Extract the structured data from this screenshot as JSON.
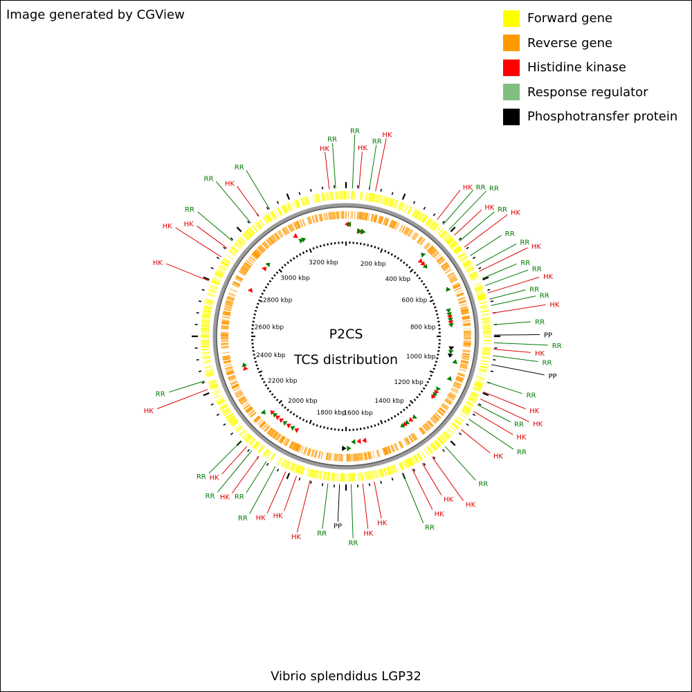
{
  "credit": "Image generated by CGView",
  "legend": [
    {
      "label": "Forward gene",
      "color": "#ffff00"
    },
    {
      "label": "Reverse gene",
      "color": "#ff9900"
    },
    {
      "label": "Histidine kinase",
      "color": "#ff0000"
    },
    {
      "label": "Response regulator",
      "color": "#7fbf7f"
    },
    {
      "label": "Phosphotransfer protein",
      "color": "#000000"
    }
  ],
  "center": {
    "line1": "P2CS",
    "line2": "TCS distribution"
  },
  "caption": "Vibrio splendidus LGP32",
  "scale_labels": [
    "200 kbp",
    "400 kbp",
    "600 kbp",
    "800 kbp",
    "1000 kbp",
    "1200 kbp",
    "1400 kbp",
    "1600 kbp",
    "1800 kbp",
    "2000 kbp",
    "2200 kbp",
    "2400 kbp",
    "2600 kbp",
    "2800 kbp",
    "3000 kbp",
    "3200 kbp"
  ],
  "label_colors": {
    "HK": "#dd0000",
    "RR": "#007700",
    "PP": "#000000"
  },
  "marker_colors": {
    "HK": "#ff0000",
    "RR": "#008000",
    "PP": "#000000"
  },
  "labels": [
    {
      "text": "HK",
      "angle": -6.5
    },
    {
      "text": "RR",
      "angle": -4.0
    },
    {
      "text": "RR",
      "angle": 2.5
    },
    {
      "text": "HK",
      "angle": 5.0
    },
    {
      "text": "RR",
      "angle": 9.0
    },
    {
      "text": "HK",
      "angle": 11.5
    },
    {
      "text": "HK",
      "angle": 38.0
    },
    {
      "text": "RR",
      "angle": 41.0
    },
    {
      "text": "RR",
      "angle": 44.0
    },
    {
      "text": "HK",
      "angle": 47.0
    },
    {
      "text": "RR",
      "angle": 50.0
    },
    {
      "text": "HK",
      "angle": 53.0
    },
    {
      "text": "RR",
      "angle": 57.0
    },
    {
      "text": "RR",
      "angle": 61.5
    },
    {
      "text": "HK",
      "angle": 64.0
    },
    {
      "text": "RR",
      "angle": 67.0
    },
    {
      "text": "RR",
      "angle": 70.0
    },
    {
      "text": "HK",
      "angle": 73.0
    },
    {
      "text": "RR",
      "angle": 75.5
    },
    {
      "text": "RR",
      "angle": 78.0
    },
    {
      "text": "HK",
      "angle": 81.0
    },
    {
      "text": "RR",
      "angle": 85.5
    },
    {
      "text": "PP",
      "angle": 89.5
    },
    {
      "text": "RR",
      "angle": 92.5
    },
    {
      "text": "HK",
      "angle": 95.0
    },
    {
      "text": "RR",
      "angle": 97.5
    },
    {
      "text": "PP",
      "angle": 101.0
    },
    {
      "text": "RR",
      "angle": 108.0
    },
    {
      "text": "HK",
      "angle": 112.0
    },
    {
      "text": "HK",
      "angle": 115.0
    },
    {
      "text": "RR",
      "angle": 117.5
    },
    {
      "text": "HK",
      "angle": 120.5
    },
    {
      "text": "RR",
      "angle": 124.0
    },
    {
      "text": "HK",
      "angle": 129.0
    },
    {
      "text": "RR",
      "angle": 138.0
    },
    {
      "text": "HK",
      "angle": 144.5
    },
    {
      "text": "HK",
      "angle": 149.0
    },
    {
      "text": "HK",
      "angle": 153.5
    },
    {
      "text": "RR",
      "angle": 157.5
    },
    {
      "text": "HK",
      "angle": 169.0
    },
    {
      "text": "HK",
      "angle": 173.5
    },
    {
      "text": "RR",
      "angle": 178.0
    },
    {
      "text": "PP",
      "angle": 182.5
    },
    {
      "text": "RR",
      "angle": 187.0
    },
    {
      "text": "HK",
      "angle": 194.0
    },
    {
      "text": "HK",
      "angle": 199.5
    },
    {
      "text": "HK",
      "angle": 204.0
    },
    {
      "text": "RR",
      "angle": 208.5
    },
    {
      "text": "RR",
      "angle": 212.5
    },
    {
      "text": "HK",
      "angle": 216.0
    },
    {
      "text": "RR",
      "angle": 219.5
    },
    {
      "text": "HK",
      "angle": 222.0
    },
    {
      "text": "RR",
      "angle": 225.0
    },
    {
      "text": "HK",
      "angle": 249.0
    },
    {
      "text": "RR",
      "angle": 252.5
    },
    {
      "text": "HK",
      "angle": 292.0
    },
    {
      "text": "HK",
      "angle": 302.5
    },
    {
      "text": "HK",
      "angle": 306.5
    },
    {
      "text": "RR",
      "angle": 310.0
    },
    {
      "text": "RR",
      "angle": 320.0
    },
    {
      "text": "HK",
      "angle": 324.0
    },
    {
      "text": "RR",
      "angle": 329.0
    }
  ],
  "markers": [
    {
      "type": "HK",
      "angle": 0.5,
      "dir": "r"
    },
    {
      "type": "RR",
      "angle": 1.5,
      "dir": "r"
    },
    {
      "type": "HK",
      "angle": 7.0,
      "dir": "f"
    },
    {
      "type": "HK",
      "angle": 9.0,
      "dir": "f"
    },
    {
      "type": "RR",
      "angle": 7.5,
      "dir": "f"
    },
    {
      "type": "RR",
      "angle": 9.5,
      "dir": "f"
    },
    {
      "type": "RR",
      "angle": 43.0,
      "dir": "r"
    },
    {
      "type": "HK",
      "angle": 45.0,
      "dir": "f"
    },
    {
      "type": "HK",
      "angle": 47.0,
      "dir": "f"
    },
    {
      "type": "RR",
      "angle": 49.0,
      "dir": "f"
    },
    {
      "type": "RR",
      "angle": 65.0,
      "dir": "r"
    },
    {
      "type": "RR",
      "angle": 76.0,
      "dir": "f"
    },
    {
      "type": "RR",
      "angle": 78.0,
      "dir": "f"
    },
    {
      "type": "HK",
      "angle": 79.5,
      "dir": "f"
    },
    {
      "type": "RR",
      "angle": 81.0,
      "dir": "f"
    },
    {
      "type": "HK",
      "angle": 82.5,
      "dir": "f"
    },
    {
      "type": "RR",
      "angle": 84.0,
      "dir": "f"
    },
    {
      "type": "PP",
      "angle": 96.5,
      "dir": "f"
    },
    {
      "type": "RR",
      "angle": 98.5,
      "dir": "f"
    },
    {
      "type": "PP",
      "angle": 100.5,
      "dir": "f"
    },
    {
      "type": "RR",
      "angle": 103.0,
      "dir": "r"
    },
    {
      "type": "RR",
      "angle": 112.0,
      "dir": "r"
    },
    {
      "type": "RR",
      "angle": 120.0,
      "dir": "f"
    },
    {
      "type": "HK",
      "angle": 122.0,
      "dir": "f"
    },
    {
      "type": "RR",
      "angle": 123.5,
      "dir": "f"
    },
    {
      "type": "HK",
      "angle": 125.0,
      "dir": "f"
    },
    {
      "type": "RR",
      "angle": 140.0,
      "dir": "f"
    },
    {
      "type": "HK",
      "angle": 142.5,
      "dir": "f"
    },
    {
      "type": "RR",
      "angle": 145.0,
      "dir": "f"
    },
    {
      "type": "HK",
      "angle": 146.5,
      "dir": "f"
    },
    {
      "type": "RR",
      "angle": 148.0,
      "dir": "f"
    },
    {
      "type": "HK",
      "angle": 170.0,
      "dir": "f"
    },
    {
      "type": "HK",
      "angle": 173.0,
      "dir": "f"
    },
    {
      "type": "RR",
      "angle": 176.0,
      "dir": "f"
    },
    {
      "type": "RR",
      "angle": 178.5,
      "dir": "r"
    },
    {
      "type": "PP",
      "angle": 181.0,
      "dir": "r"
    },
    {
      "type": "HK",
      "angle": 208.0,
      "dir": "f"
    },
    {
      "type": "RR",
      "angle": 210.5,
      "dir": "f"
    },
    {
      "type": "HK",
      "angle": 213.0,
      "dir": "f"
    },
    {
      "type": "RR",
      "angle": 215.5,
      "dir": "f"
    },
    {
      "type": "HK",
      "angle": 218.0,
      "dir": "f"
    },
    {
      "type": "HK",
      "angle": 220.5,
      "dir": "f"
    },
    {
      "type": "RR",
      "angle": 222.5,
      "dir": "f"
    },
    {
      "type": "HK",
      "angle": 224.5,
      "dir": "f"
    },
    {
      "type": "RR",
      "angle": 227.0,
      "dir": "r"
    },
    {
      "type": "HK",
      "angle": 252.5,
      "dir": "f"
    },
    {
      "type": "RR",
      "angle": 254.5,
      "dir": "f"
    },
    {
      "type": "HK",
      "angle": 296.0,
      "dir": "f"
    },
    {
      "type": "HK",
      "angle": 310.0,
      "dir": "f"
    },
    {
      "type": "RR",
      "angle": 313.0,
      "dir": "f"
    },
    {
      "type": "HK",
      "angle": 333.0,
      "dir": "r"
    },
    {
      "type": "RR",
      "angle": 335.0,
      "dir": "f"
    },
    {
      "type": "RR",
      "angle": 336.5,
      "dir": "f"
    }
  ]
}
